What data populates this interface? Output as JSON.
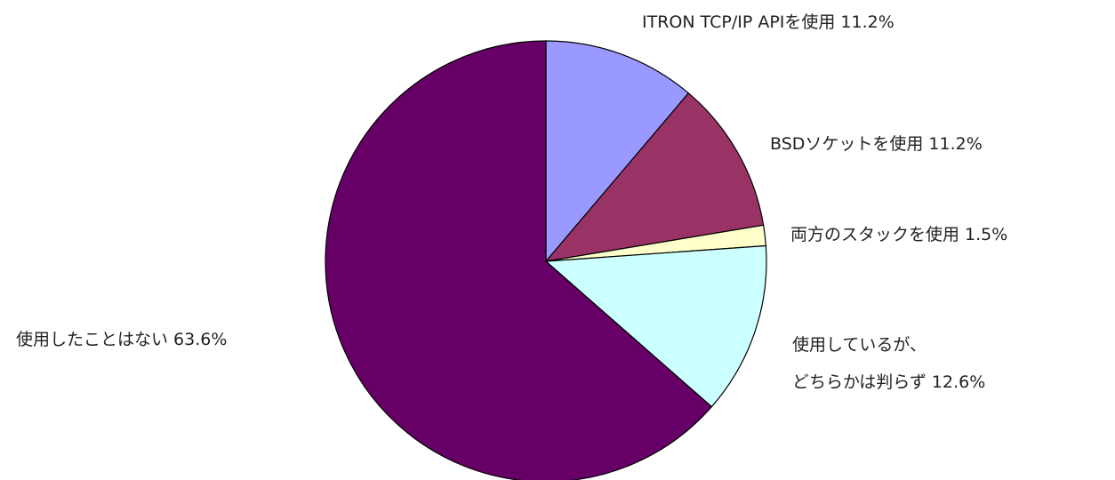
{
  "chart_data": {
    "type": "pie",
    "title": "",
    "slices": [
      {
        "lines": [
          "ITRON TCP/IP APIを使用 11.2%"
        ],
        "value": 11.2,
        "color": "#9999ff"
      },
      {
        "lines": [
          "BSDソケットを使用 11.2%"
        ],
        "value": 11.2,
        "color": "#993366"
      },
      {
        "lines": [
          "両方のスタックを使用 1.5%"
        ],
        "value": 1.5,
        "color": "#ffffcc"
      },
      {
        "lines": [
          "使用しているが、",
          "どちらかは判らず 12.6%"
        ],
        "value": 12.6,
        "color": "#ccffff"
      },
      {
        "lines": [
          "使用したことはない 63.6%"
        ],
        "value": 63.6,
        "color": "#660066"
      }
    ],
    "start_angle": "12 o'clock",
    "direction": "clockwise",
    "legend": "none"
  }
}
